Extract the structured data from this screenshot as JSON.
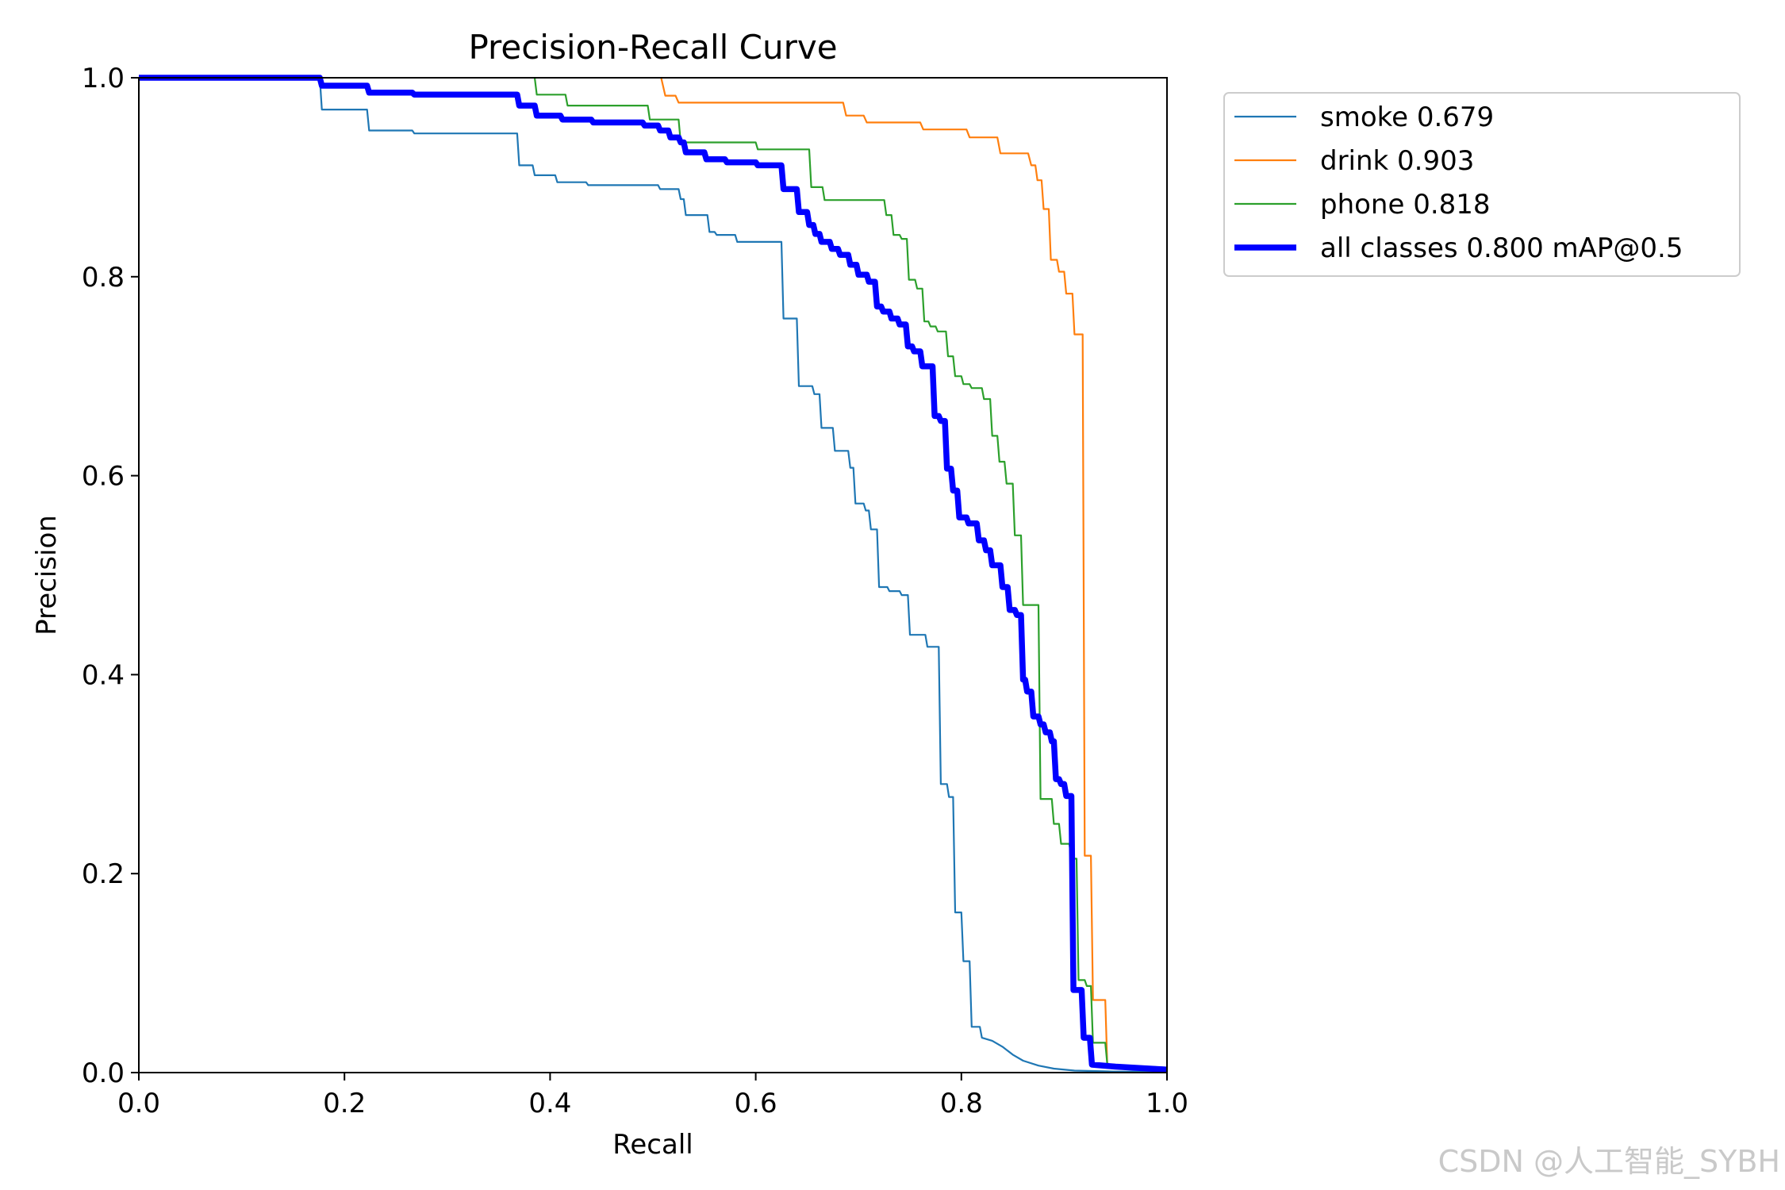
{
  "chart_data": {
    "type": "line",
    "title": "Precision-Recall Curve",
    "xlabel": "Recall",
    "ylabel": "Precision",
    "xlim": [
      0,
      1
    ],
    "ylim": [
      0,
      1
    ],
    "xticks": [
      "0.0",
      "0.2",
      "0.4",
      "0.6",
      "0.8",
      "1.0"
    ],
    "yticks": [
      "0.0",
      "0.2",
      "0.4",
      "0.6",
      "0.8",
      "1.0"
    ],
    "grid": false,
    "legend_position": "outside-top-right",
    "series": [
      {
        "name": "smoke",
        "legend_label": "smoke 0.679",
        "ap": 0.679,
        "color": "#1f77b4",
        "weight": "thin",
        "points": [
          [
            0,
            1
          ],
          [
            0.176,
            1
          ],
          [
            0.178,
            0.968
          ],
          [
            0.222,
            0.968
          ],
          [
            0.224,
            0.947
          ],
          [
            0.266,
            0.947
          ],
          [
            0.268,
            0.944
          ],
          [
            0.368,
            0.944
          ],
          [
            0.37,
            0.912
          ],
          [
            0.383,
            0.912
          ],
          [
            0.385,
            0.902
          ],
          [
            0.405,
            0.902
          ],
          [
            0.407,
            0.895
          ],
          [
            0.435,
            0.895
          ],
          [
            0.437,
            0.892
          ],
          [
            0.505,
            0.892
          ],
          [
            0.507,
            0.888
          ],
          [
            0.525,
            0.888
          ],
          [
            0.527,
            0.878
          ],
          [
            0.53,
            0.878
          ],
          [
            0.532,
            0.862
          ],
          [
            0.553,
            0.862
          ],
          [
            0.555,
            0.845
          ],
          [
            0.56,
            0.845
          ],
          [
            0.562,
            0.842
          ],
          [
            0.58,
            0.842
          ],
          [
            0.582,
            0.835
          ],
          [
            0.625,
            0.835
          ],
          [
            0.627,
            0.758
          ],
          [
            0.64,
            0.758
          ],
          [
            0.642,
            0.69
          ],
          [
            0.655,
            0.69
          ],
          [
            0.657,
            0.682
          ],
          [
            0.662,
            0.682
          ],
          [
            0.664,
            0.648
          ],
          [
            0.675,
            0.648
          ],
          [
            0.677,
            0.625
          ],
          [
            0.69,
            0.625
          ],
          [
            0.692,
            0.608
          ],
          [
            0.695,
            0.608
          ],
          [
            0.697,
            0.572
          ],
          [
            0.705,
            0.572
          ],
          [
            0.707,
            0.565
          ],
          [
            0.71,
            0.565
          ],
          [
            0.712,
            0.546
          ],
          [
            0.718,
            0.546
          ],
          [
            0.72,
            0.488
          ],
          [
            0.728,
            0.488
          ],
          [
            0.73,
            0.484
          ],
          [
            0.74,
            0.484
          ],
          [
            0.742,
            0.48
          ],
          [
            0.748,
            0.48
          ],
          [
            0.75,
            0.44
          ],
          [
            0.765,
            0.44
          ],
          [
            0.767,
            0.428
          ],
          [
            0.778,
            0.428
          ],
          [
            0.78,
            0.29
          ],
          [
            0.786,
            0.29
          ],
          [
            0.788,
            0.277
          ],
          [
            0.792,
            0.277
          ],
          [
            0.794,
            0.161
          ],
          [
            0.8,
            0.161
          ],
          [
            0.802,
            0.112
          ],
          [
            0.808,
            0.112
          ],
          [
            0.81,
            0.046
          ],
          [
            0.818,
            0.046
          ],
          [
            0.82,
            0.035
          ],
          [
            0.83,
            0.032
          ],
          [
            0.84,
            0.026
          ],
          [
            0.85,
            0.018
          ],
          [
            0.86,
            0.012
          ],
          [
            0.875,
            0.007
          ],
          [
            0.89,
            0.004
          ],
          [
            0.91,
            0.002
          ],
          [
            0.95,
            0.001
          ],
          [
            1.0,
            0.001
          ]
        ]
      },
      {
        "name": "drink",
        "legend_label": "drink 0.903",
        "ap": 0.903,
        "color": "#ff7f0e",
        "weight": "thin",
        "points": [
          [
            0.508,
            1
          ],
          [
            0.512,
            0.982
          ],
          [
            0.522,
            0.982
          ],
          [
            0.525,
            0.975
          ],
          [
            0.685,
            0.975
          ],
          [
            0.688,
            0.962
          ],
          [
            0.705,
            0.962
          ],
          [
            0.708,
            0.955
          ],
          [
            0.76,
            0.955
          ],
          [
            0.763,
            0.948
          ],
          [
            0.805,
            0.948
          ],
          [
            0.808,
            0.94
          ],
          [
            0.835,
            0.94
          ],
          [
            0.838,
            0.924
          ],
          [
            0.865,
            0.924
          ],
          [
            0.868,
            0.912
          ],
          [
            0.872,
            0.912
          ],
          [
            0.874,
            0.897
          ],
          [
            0.878,
            0.897
          ],
          [
            0.88,
            0.868
          ],
          [
            0.885,
            0.868
          ],
          [
            0.887,
            0.817
          ],
          [
            0.893,
            0.817
          ],
          [
            0.895,
            0.805
          ],
          [
            0.9,
            0.805
          ],
          [
            0.902,
            0.783
          ],
          [
            0.908,
            0.783
          ],
          [
            0.91,
            0.742
          ],
          [
            0.918,
            0.742
          ],
          [
            0.92,
            0.218
          ],
          [
            0.926,
            0.218
          ],
          [
            0.928,
            0.073
          ],
          [
            0.94,
            0.073
          ],
          [
            0.942,
            0.005
          ],
          [
            1.0,
            0.005
          ]
        ]
      },
      {
        "name": "phone",
        "legend_label": "phone 0.818",
        "ap": 0.818,
        "color": "#2ca02c",
        "weight": "thin",
        "points": [
          [
            0.385,
            1
          ],
          [
            0.387,
            0.983
          ],
          [
            0.415,
            0.983
          ],
          [
            0.417,
            0.972
          ],
          [
            0.495,
            0.972
          ],
          [
            0.497,
            0.958
          ],
          [
            0.525,
            0.958
          ],
          [
            0.527,
            0.935
          ],
          [
            0.6,
            0.935
          ],
          [
            0.602,
            0.928
          ],
          [
            0.652,
            0.928
          ],
          [
            0.654,
            0.89
          ],
          [
            0.665,
            0.89
          ],
          [
            0.667,
            0.877
          ],
          [
            0.725,
            0.877
          ],
          [
            0.727,
            0.862
          ],
          [
            0.732,
            0.862
          ],
          [
            0.734,
            0.842
          ],
          [
            0.74,
            0.842
          ],
          [
            0.742,
            0.838
          ],
          [
            0.747,
            0.838
          ],
          [
            0.749,
            0.797
          ],
          [
            0.755,
            0.797
          ],
          [
            0.757,
            0.788
          ],
          [
            0.762,
            0.788
          ],
          [
            0.764,
            0.755
          ],
          [
            0.768,
            0.755
          ],
          [
            0.77,
            0.75
          ],
          [
            0.775,
            0.75
          ],
          [
            0.777,
            0.745
          ],
          [
            0.785,
            0.745
          ],
          [
            0.787,
            0.72
          ],
          [
            0.792,
            0.72
          ],
          [
            0.794,
            0.7
          ],
          [
            0.8,
            0.7
          ],
          [
            0.802,
            0.692
          ],
          [
            0.808,
            0.692
          ],
          [
            0.81,
            0.688
          ],
          [
            0.82,
            0.688
          ],
          [
            0.822,
            0.677
          ],
          [
            0.828,
            0.677
          ],
          [
            0.83,
            0.64
          ],
          [
            0.835,
            0.64
          ],
          [
            0.837,
            0.614
          ],
          [
            0.842,
            0.614
          ],
          [
            0.844,
            0.592
          ],
          [
            0.85,
            0.592
          ],
          [
            0.852,
            0.54
          ],
          [
            0.858,
            0.54
          ],
          [
            0.86,
            0.47
          ],
          [
            0.875,
            0.47
          ],
          [
            0.877,
            0.275
          ],
          [
            0.888,
            0.275
          ],
          [
            0.89,
            0.25
          ],
          [
            0.895,
            0.25
          ],
          [
            0.897,
            0.23
          ],
          [
            0.905,
            0.23
          ],
          [
            0.907,
            0.215
          ],
          [
            0.912,
            0.215
          ],
          [
            0.914,
            0.093
          ],
          [
            0.92,
            0.093
          ],
          [
            0.922,
            0.087
          ],
          [
            0.926,
            0.087
          ],
          [
            0.928,
            0.03
          ],
          [
            0.94,
            0.03
          ],
          [
            0.942,
            0.008
          ],
          [
            1.0,
            0.005
          ]
        ]
      },
      {
        "name": "all classes",
        "legend_label": "all classes 0.800 mAP@0.5",
        "ap": 0.8,
        "color": "#0000ff",
        "weight": "thick",
        "points": [
          [
            0,
            1
          ],
          [
            0.176,
            1
          ],
          [
            0.178,
            0.992
          ],
          [
            0.222,
            0.992
          ],
          [
            0.224,
            0.985
          ],
          [
            0.266,
            0.985
          ],
          [
            0.268,
            0.983
          ],
          [
            0.368,
            0.983
          ],
          [
            0.37,
            0.972
          ],
          [
            0.385,
            0.972
          ],
          [
            0.387,
            0.962
          ],
          [
            0.41,
            0.962
          ],
          [
            0.412,
            0.958
          ],
          [
            0.44,
            0.958
          ],
          [
            0.442,
            0.955
          ],
          [
            0.49,
            0.955
          ],
          [
            0.492,
            0.952
          ],
          [
            0.505,
            0.952
          ],
          [
            0.507,
            0.947
          ],
          [
            0.515,
            0.947
          ],
          [
            0.517,
            0.94
          ],
          [
            0.525,
            0.94
          ],
          [
            0.527,
            0.935
          ],
          [
            0.53,
            0.935
          ],
          [
            0.532,
            0.925
          ],
          [
            0.55,
            0.925
          ],
          [
            0.552,
            0.918
          ],
          [
            0.57,
            0.918
          ],
          [
            0.572,
            0.915
          ],
          [
            0.6,
            0.915
          ],
          [
            0.602,
            0.912
          ],
          [
            0.625,
            0.912
          ],
          [
            0.627,
            0.888
          ],
          [
            0.64,
            0.888
          ],
          [
            0.642,
            0.865
          ],
          [
            0.65,
            0.865
          ],
          [
            0.652,
            0.852
          ],
          [
            0.656,
            0.852
          ],
          [
            0.658,
            0.843
          ],
          [
            0.662,
            0.843
          ],
          [
            0.664,
            0.835
          ],
          [
            0.672,
            0.835
          ],
          [
            0.674,
            0.828
          ],
          [
            0.68,
            0.828
          ],
          [
            0.682,
            0.822
          ],
          [
            0.69,
            0.822
          ],
          [
            0.692,
            0.812
          ],
          [
            0.698,
            0.812
          ],
          [
            0.7,
            0.802
          ],
          [
            0.708,
            0.802
          ],
          [
            0.71,
            0.795
          ],
          [
            0.716,
            0.795
          ],
          [
            0.718,
            0.77
          ],
          [
            0.722,
            0.77
          ],
          [
            0.724,
            0.765
          ],
          [
            0.73,
            0.765
          ],
          [
            0.732,
            0.758
          ],
          [
            0.738,
            0.758
          ],
          [
            0.74,
            0.752
          ],
          [
            0.746,
            0.752
          ],
          [
            0.748,
            0.73
          ],
          [
            0.752,
            0.73
          ],
          [
            0.754,
            0.725
          ],
          [
            0.76,
            0.725
          ],
          [
            0.762,
            0.71
          ],
          [
            0.772,
            0.71
          ],
          [
            0.774,
            0.66
          ],
          [
            0.778,
            0.66
          ],
          [
            0.78,
            0.655
          ],
          [
            0.784,
            0.655
          ],
          [
            0.786,
            0.607
          ],
          [
            0.79,
            0.607
          ],
          [
            0.792,
            0.585
          ],
          [
            0.796,
            0.585
          ],
          [
            0.798,
            0.558
          ],
          [
            0.805,
            0.558
          ],
          [
            0.807,
            0.552
          ],
          [
            0.815,
            0.552
          ],
          [
            0.817,
            0.535
          ],
          [
            0.822,
            0.535
          ],
          [
            0.824,
            0.525
          ],
          [
            0.828,
            0.525
          ],
          [
            0.83,
            0.51
          ],
          [
            0.838,
            0.51
          ],
          [
            0.84,
            0.488
          ],
          [
            0.845,
            0.488
          ],
          [
            0.847,
            0.465
          ],
          [
            0.852,
            0.465
          ],
          [
            0.854,
            0.46
          ],
          [
            0.858,
            0.46
          ],
          [
            0.86,
            0.395
          ],
          [
            0.862,
            0.395
          ],
          [
            0.864,
            0.383
          ],
          [
            0.868,
            0.383
          ],
          [
            0.87,
            0.358
          ],
          [
            0.875,
            0.358
          ],
          [
            0.877,
            0.35
          ],
          [
            0.88,
            0.35
          ],
          [
            0.882,
            0.342
          ],
          [
            0.886,
            0.342
          ],
          [
            0.888,
            0.333
          ],
          [
            0.89,
            0.333
          ],
          [
            0.892,
            0.295
          ],
          [
            0.895,
            0.295
          ],
          [
            0.897,
            0.29
          ],
          [
            0.9,
            0.29
          ],
          [
            0.902,
            0.278
          ],
          [
            0.907,
            0.278
          ],
          [
            0.909,
            0.083
          ],
          [
            0.917,
            0.083
          ],
          [
            0.919,
            0.035
          ],
          [
            0.925,
            0.035
          ],
          [
            0.927,
            0.008
          ],
          [
            0.95,
            0.006
          ],
          [
            1.0,
            0.003
          ]
        ]
      }
    ]
  },
  "watermark": "CSDN @人工智能_SYBH"
}
